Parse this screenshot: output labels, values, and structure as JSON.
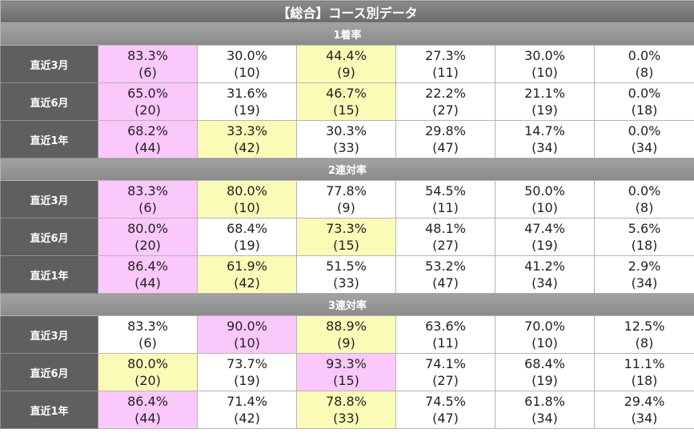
{
  "title": "【総合】コース別データ",
  "sections": [
    {
      "label": "1着率",
      "rows": [
        {
          "period": "直近3月",
          "cells": [
            {
              "pct": "83.3%",
              "count": "(6)",
              "hl": "pink"
            },
            {
              "pct": "30.0%",
              "count": "(10)",
              "hl": ""
            },
            {
              "pct": "44.4%",
              "count": "(9)",
              "hl": "yellow"
            },
            {
              "pct": "27.3%",
              "count": "(11)",
              "hl": ""
            },
            {
              "pct": "30.0%",
              "count": "(10)",
              "hl": ""
            },
            {
              "pct": "0.0%",
              "count": "(8)",
              "hl": ""
            }
          ]
        },
        {
          "period": "直近6月",
          "cells": [
            {
              "pct": "65.0%",
              "count": "(20)",
              "hl": "pink"
            },
            {
              "pct": "31.6%",
              "count": "(19)",
              "hl": ""
            },
            {
              "pct": "46.7%",
              "count": "(15)",
              "hl": "yellow"
            },
            {
              "pct": "22.2%",
              "count": "(27)",
              "hl": ""
            },
            {
              "pct": "21.1%",
              "count": "(19)",
              "hl": ""
            },
            {
              "pct": "0.0%",
              "count": "(18)",
              "hl": ""
            }
          ]
        },
        {
          "period": "直近1年",
          "cells": [
            {
              "pct": "68.2%",
              "count": "(44)",
              "hl": "pink"
            },
            {
              "pct": "33.3%",
              "count": "(42)",
              "hl": "yellow"
            },
            {
              "pct": "30.3%",
              "count": "(33)",
              "hl": ""
            },
            {
              "pct": "29.8%",
              "count": "(47)",
              "hl": ""
            },
            {
              "pct": "14.7%",
              "count": "(34)",
              "hl": ""
            },
            {
              "pct": "0.0%",
              "count": "(34)",
              "hl": ""
            }
          ]
        }
      ]
    },
    {
      "label": "2連対率",
      "rows": [
        {
          "period": "直近3月",
          "cells": [
            {
              "pct": "83.3%",
              "count": "(6)",
              "hl": "pink"
            },
            {
              "pct": "80.0%",
              "count": "(10)",
              "hl": "yellow"
            },
            {
              "pct": "77.8%",
              "count": "(9)",
              "hl": ""
            },
            {
              "pct": "54.5%",
              "count": "(11)",
              "hl": ""
            },
            {
              "pct": "50.0%",
              "count": "(10)",
              "hl": ""
            },
            {
              "pct": "0.0%",
              "count": "(8)",
              "hl": ""
            }
          ]
        },
        {
          "period": "直近6月",
          "cells": [
            {
              "pct": "80.0%",
              "count": "(20)",
              "hl": "pink"
            },
            {
              "pct": "68.4%",
              "count": "(19)",
              "hl": ""
            },
            {
              "pct": "73.3%",
              "count": "(15)",
              "hl": "yellow"
            },
            {
              "pct": "48.1%",
              "count": "(27)",
              "hl": ""
            },
            {
              "pct": "47.4%",
              "count": "(19)",
              "hl": ""
            },
            {
              "pct": "5.6%",
              "count": "(18)",
              "hl": ""
            }
          ]
        },
        {
          "period": "直近1年",
          "cells": [
            {
              "pct": "86.4%",
              "count": "(44)",
              "hl": "pink"
            },
            {
              "pct": "61.9%",
              "count": "(42)",
              "hl": "yellow"
            },
            {
              "pct": "51.5%",
              "count": "(33)",
              "hl": ""
            },
            {
              "pct": "53.2%",
              "count": "(47)",
              "hl": ""
            },
            {
              "pct": "41.2%",
              "count": "(34)",
              "hl": ""
            },
            {
              "pct": "2.9%",
              "count": "(34)",
              "hl": ""
            }
          ]
        }
      ]
    },
    {
      "label": "3連対率",
      "rows": [
        {
          "period": "直近3月",
          "cells": [
            {
              "pct": "83.3%",
              "count": "(6)",
              "hl": ""
            },
            {
              "pct": "90.0%",
              "count": "(10)",
              "hl": "pink"
            },
            {
              "pct": "88.9%",
              "count": "(9)",
              "hl": "yellow"
            },
            {
              "pct": "63.6%",
              "count": "(11)",
              "hl": ""
            },
            {
              "pct": "70.0%",
              "count": "(10)",
              "hl": ""
            },
            {
              "pct": "12.5%",
              "count": "(8)",
              "hl": ""
            }
          ]
        },
        {
          "period": "直近6月",
          "cells": [
            {
              "pct": "80.0%",
              "count": "(20)",
              "hl": "yellow"
            },
            {
              "pct": "73.7%",
              "count": "(19)",
              "hl": ""
            },
            {
              "pct": "93.3%",
              "count": "(15)",
              "hl": "pink"
            },
            {
              "pct": "74.1%",
              "count": "(27)",
              "hl": ""
            },
            {
              "pct": "68.4%",
              "count": "(19)",
              "hl": ""
            },
            {
              "pct": "11.1%",
              "count": "(18)",
              "hl": ""
            }
          ]
        },
        {
          "period": "直近1年",
          "cells": [
            {
              "pct": "86.4%",
              "count": "(44)",
              "hl": "pink"
            },
            {
              "pct": "71.4%",
              "count": "(42)",
              "hl": ""
            },
            {
              "pct": "78.8%",
              "count": "(33)",
              "hl": "yellow"
            },
            {
              "pct": "74.5%",
              "count": "(47)",
              "hl": ""
            },
            {
              "pct": "61.8%",
              "count": "(34)",
              "hl": ""
            },
            {
              "pct": "29.4%",
              "count": "(34)",
              "hl": ""
            }
          ]
        }
      ]
    }
  ],
  "colors": {
    "highlight_pink": "#fbc8fb",
    "highlight_yellow": "#fbfbb8",
    "period_bg": "#5f5f5f"
  }
}
